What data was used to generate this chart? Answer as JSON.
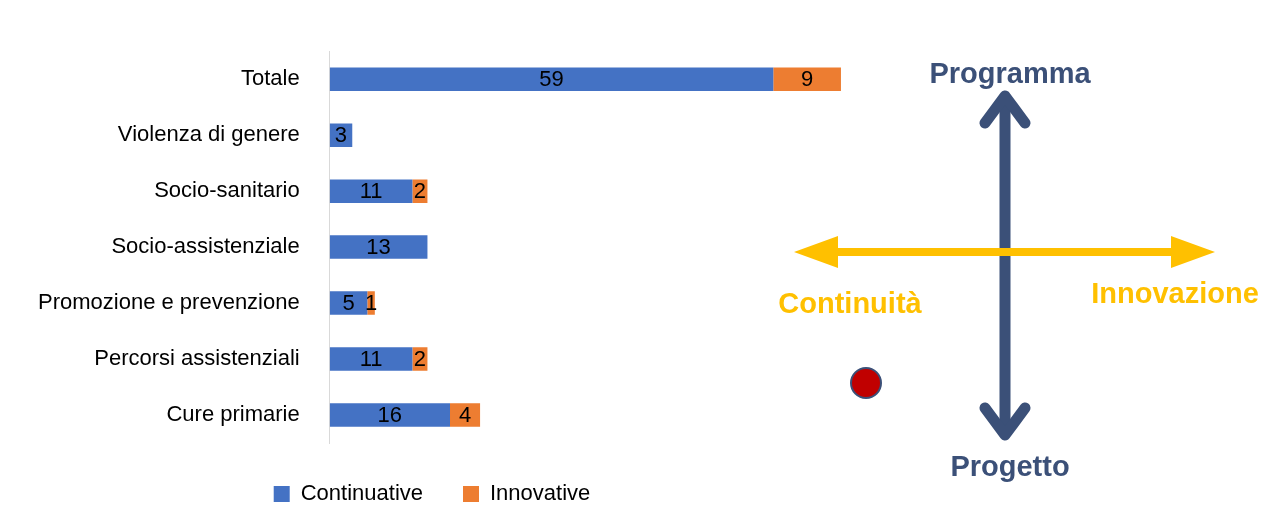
{
  "chart_data": {
    "type": "bar",
    "orientation": "horizontal",
    "stacked": true,
    "data_labels": true,
    "legend": "bottom",
    "grid": false,
    "tick_labels": "y",
    "categories": [
      "Totale",
      "Violenza di genere",
      "Socio-sanitario",
      "Socio-assistenziale",
      "Promozione e prevenzione",
      "Percorsi assistenziali",
      "Cure primarie"
    ],
    "series": [
      {
        "name": "Continuative",
        "color": "#4472c4",
        "values": [
          59,
          3,
          11,
          13,
          5,
          11,
          16
        ]
      },
      {
        "name": "Innovative",
        "color": "#ed7d31",
        "values": [
          9,
          null,
          2,
          null,
          1,
          2,
          4
        ]
      }
    ],
    "annotations": [
      "Programma",
      "Continuità",
      "Innovazione",
      "Progetto"
    ]
  }
}
